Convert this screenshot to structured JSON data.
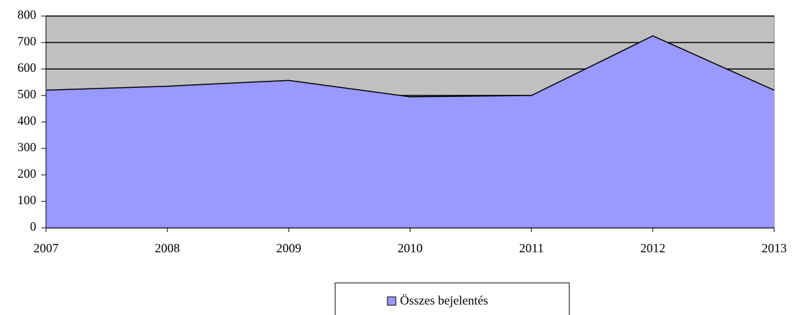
{
  "chart_data": {
    "type": "area",
    "categories": [
      "2007",
      "2008",
      "2009",
      "2010",
      "2011",
      "2012",
      "2013"
    ],
    "series": [
      {
        "name": "Összes bejelentés",
        "color": "#9999ff",
        "values": [
          520,
          535,
          557,
          495,
          500,
          725,
          520
        ]
      }
    ],
    "ylim": [
      0,
      800
    ],
    "yticks": [
      0,
      100,
      200,
      300,
      400,
      500,
      600,
      700,
      800
    ],
    "grid": true,
    "plot_background": "#c0c0c0",
    "legend": "bottom"
  }
}
